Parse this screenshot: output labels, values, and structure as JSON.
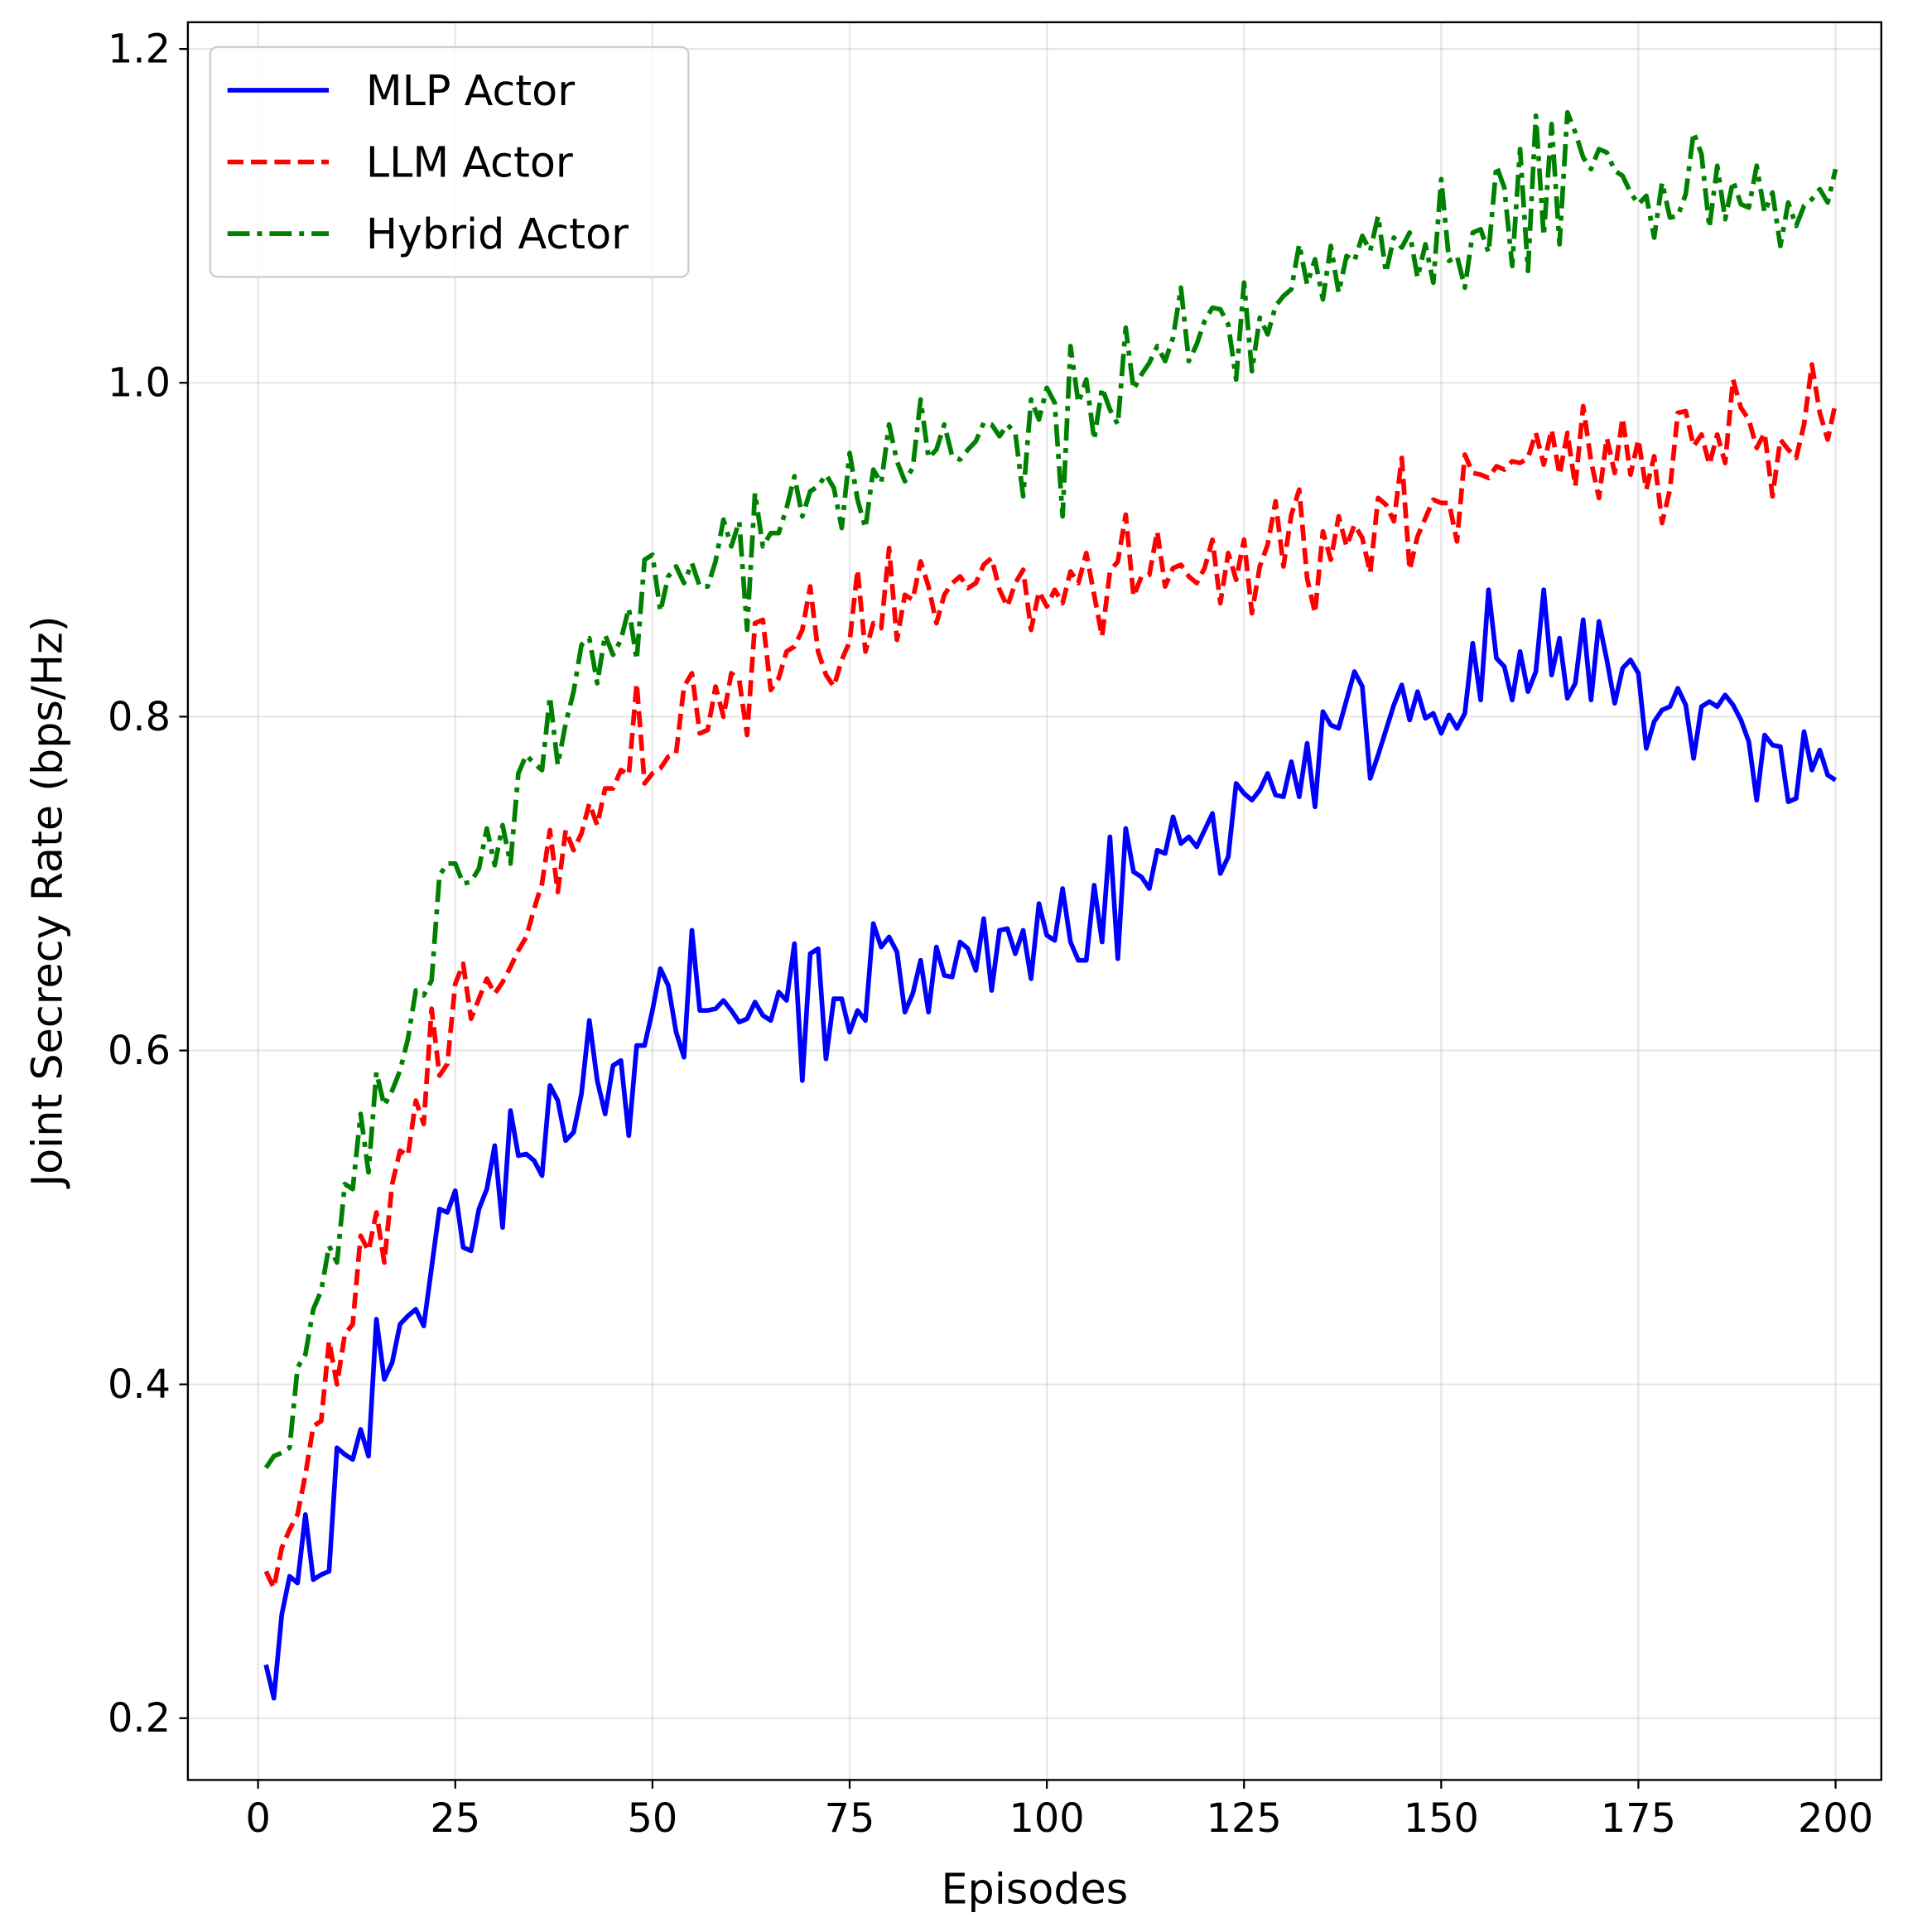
{
  "chart_data": {
    "type": "line",
    "xlabel": "Episodes",
    "ylabel": "Joint Secrecy Rate (bps/Hz)",
    "x": [
      1,
      2,
      3,
      4,
      5,
      6,
      7,
      8,
      9,
      10,
      11,
      12,
      13,
      14,
      15,
      16,
      17,
      18,
      19,
      20,
      21,
      22,
      23,
      24,
      25,
      26,
      27,
      28,
      29,
      30,
      31,
      32,
      33,
      34,
      35,
      36,
      37,
      38,
      39,
      40,
      41,
      42,
      43,
      44,
      45,
      46,
      47,
      48,
      49,
      50,
      51,
      52,
      53,
      54,
      55,
      56,
      57,
      58,
      59,
      60,
      61,
      62,
      63,
      64,
      65,
      66,
      67,
      68,
      69,
      70,
      71,
      72,
      73,
      74,
      75,
      76,
      77,
      78,
      79,
      80,
      81,
      82,
      83,
      84,
      85,
      86,
      87,
      88,
      89,
      90,
      91,
      92,
      93,
      94,
      95,
      96,
      97,
      98,
      99,
      100,
      101,
      102,
      103,
      104,
      105,
      106,
      107,
      108,
      109,
      110,
      111,
      112,
      113,
      114,
      115,
      116,
      117,
      118,
      119,
      120,
      121,
      122,
      123,
      124,
      125,
      126,
      127,
      128,
      129,
      130,
      131,
      132,
      133,
      134,
      135,
      136,
      137,
      138,
      139,
      140,
      141,
      142,
      143,
      144,
      145,
      146,
      147,
      148,
      149,
      150,
      151,
      152,
      153,
      154,
      155,
      156,
      157,
      158,
      159,
      160,
      161,
      162,
      163,
      164,
      165,
      166,
      167,
      168,
      169,
      170,
      171,
      172,
      173,
      174,
      175,
      176,
      177,
      178,
      179,
      180,
      181,
      182,
      183,
      184,
      185,
      186,
      187,
      188,
      189,
      190,
      191,
      192,
      193,
      194,
      195,
      196,
      197,
      198,
      199,
      200
    ],
    "series": [
      {
        "name": "MLP Actor",
        "color": "#0000ff",
        "dash": "solid",
        "values": [
          0.232,
          0.212,
          0.262,
          0.285,
          0.281,
          0.322,
          0.283,
          0.286,
          0.288,
          0.362,
          0.358,
          0.355,
          0.373,
          0.357,
          0.439,
          0.403,
          0.413,
          0.436,
          0.441,
          0.445,
          0.435,
          0.47,
          0.505,
          0.503,
          0.516,
          0.482,
          0.48,
          0.505,
          0.517,
          0.543,
          0.494,
          0.564,
          0.537,
          0.538,
          0.534,
          0.525,
          0.579,
          0.57,
          0.546,
          0.551,
          0.574,
          0.618,
          0.582,
          0.562,
          0.591,
          0.594,
          0.549,
          0.603,
          0.603,
          0.624,
          0.649,
          0.639,
          0.611,
          0.596,
          0.672,
          0.624,
          0.624,
          0.625,
          0.63,
          0.624,
          0.617,
          0.619,
          0.629,
          0.621,
          0.618,
          0.635,
          0.63,
          0.664,
          0.582,
          0.658,
          0.661,
          0.595,
          0.631,
          0.631,
          0.611,
          0.624,
          0.618,
          0.676,
          0.662,
          0.668,
          0.659,
          0.623,
          0.634,
          0.654,
          0.623,
          0.662,
          0.645,
          0.644,
          0.665,
          0.661,
          0.648,
          0.679,
          0.636,
          0.672,
          0.673,
          0.658,
          0.672,
          0.643,
          0.688,
          0.669,
          0.666,
          0.697,
          0.665,
          0.654,
          0.654,
          0.699,
          0.665,
          0.728,
          0.655,
          0.733,
          0.707,
          0.704,
          0.697,
          0.72,
          0.718,
          0.74,
          0.724,
          0.728,
          0.722,
          0.732,
          0.742,
          0.706,
          0.716,
          0.76,
          0.754,
          0.75,
          0.756,
          0.766,
          0.753,
          0.752,
          0.773,
          0.752,
          0.784,
          0.746,
          0.803,
          0.795,
          0.793,
          0.81,
          0.827,
          0.818,
          0.763,
          0.777,
          0.792,
          0.807,
          0.819,
          0.798,
          0.815,
          0.799,
          0.802,
          0.79,
          0.801,
          0.793,
          0.802,
          0.844,
          0.81,
          0.876,
          0.835,
          0.83,
          0.81,
          0.839,
          0.815,
          0.827,
          0.876,
          0.825,
          0.847,
          0.811,
          0.82,
          0.858,
          0.81,
          0.857,
          0.834,
          0.808,
          0.829,
          0.834,
          0.826,
          0.781,
          0.797,
          0.804,
          0.806,
          0.817,
          0.807,
          0.775,
          0.806,
          0.809,
          0.806,
          0.813,
          0.807,
          0.798,
          0.785,
          0.75,
          0.789,
          0.783,
          0.782,
          0.749,
          0.751,
          0.791,
          0.768,
          0.78,
          0.765,
          0.762
        ]
      },
      {
        "name": "LLM Actor",
        "color": "#ff0000",
        "dash": "dashed",
        "values": [
          0.288,
          0.278,
          0.302,
          0.313,
          0.322,
          0.346,
          0.375,
          0.378,
          0.426,
          0.4,
          0.43,
          0.436,
          0.489,
          0.48,
          0.503,
          0.473,
          0.52,
          0.54,
          0.537,
          0.57,
          0.556,
          0.625,
          0.585,
          0.592,
          0.64,
          0.652,
          0.619,
          0.631,
          0.643,
          0.634,
          0.641,
          0.65,
          0.66,
          0.668,
          0.685,
          0.7,
          0.732,
          0.695,
          0.732,
          0.72,
          0.73,
          0.748,
          0.735,
          0.757,
          0.757,
          0.768,
          0.765,
          0.82,
          0.76,
          0.766,
          0.769,
          0.776,
          0.778,
          0.818,
          0.826,
          0.79,
          0.792,
          0.818,
          0.8,
          0.826,
          0.822,
          0.789,
          0.856,
          0.858,
          0.816,
          0.823,
          0.839,
          0.842,
          0.852,
          0.878,
          0.839,
          0.825,
          0.818,
          0.834,
          0.845,
          0.888,
          0.839,
          0.856,
          0.853,
          0.901,
          0.846,
          0.873,
          0.87,
          0.893,
          0.878,
          0.856,
          0.873,
          0.88,
          0.884,
          0.877,
          0.88,
          0.891,
          0.895,
          0.876,
          0.866,
          0.88,
          0.888,
          0.852,
          0.875,
          0.866,
          0.876,
          0.868,
          0.887,
          0.88,
          0.898,
          0.873,
          0.848,
          0.887,
          0.893,
          0.921,
          0.872,
          0.884,
          0.885,
          0.911,
          0.878,
          0.889,
          0.891,
          0.884,
          0.88,
          0.889,
          0.906,
          0.868,
          0.898,
          0.882,
          0.906,
          0.862,
          0.89,
          0.903,
          0.929,
          0.89,
          0.921,
          0.936,
          0.883,
          0.862,
          0.911,
          0.894,
          0.92,
          0.902,
          0.915,
          0.907,
          0.886,
          0.931,
          0.927,
          0.917,
          0.955,
          0.888,
          0.908,
          0.919,
          0.93,
          0.928,
          0.928,
          0.905,
          0.957,
          0.946,
          0.945,
          0.943,
          0.95,
          0.948,
          0.953,
          0.952,
          0.955,
          0.97,
          0.951,
          0.972,
          0.945,
          0.97,
          0.938,
          0.986,
          0.953,
          0.931,
          0.967,
          0.946,
          0.979,
          0.945,
          0.966,
          0.936,
          0.956,
          0.916,
          0.936,
          0.982,
          0.983,
          0.962,
          0.969,
          0.951,
          0.969,
          0.952,
          1.002,
          0.985,
          0.978,
          0.961,
          0.97,
          0.932,
          0.966,
          0.96,
          0.955,
          0.975,
          1.011,
          0.982,
          0.966,
          0.988
        ]
      },
      {
        "name": "Hybrid Actor",
        "color": "#008000",
        "dash": "dashdot",
        "values": [
          0.35,
          0.357,
          0.359,
          0.362,
          0.41,
          0.418,
          0.445,
          0.456,
          0.483,
          0.473,
          0.52,
          0.517,
          0.562,
          0.527,
          0.587,
          0.567,
          0.576,
          0.588,
          0.607,
          0.636,
          0.633,
          0.642,
          0.705,
          0.712,
          0.712,
          0.7,
          0.701,
          0.709,
          0.733,
          0.711,
          0.735,
          0.712,
          0.766,
          0.777,
          0.772,
          0.768,
          0.812,
          0.771,
          0.796,
          0.815,
          0.843,
          0.847,
          0.82,
          0.849,
          0.837,
          0.846,
          0.865,
          0.834,
          0.894,
          0.897,
          0.863,
          0.884,
          0.89,
          0.88,
          0.892,
          0.878,
          0.878,
          0.893,
          0.918,
          0.902,
          0.917,
          0.852,
          0.934,
          0.902,
          0.91,
          0.91,
          0.925,
          0.944,
          0.92,
          0.935,
          0.938,
          0.945,
          0.937,
          0.913,
          0.958,
          0.93,
          0.913,
          0.948,
          0.94,
          0.975,
          0.953,
          0.941,
          0.949,
          0.99,
          0.955,
          0.96,
          0.975,
          0.956,
          0.954,
          0.96,
          0.965,
          0.976,
          0.975,
          0.968,
          0.975,
          0.97,
          0.932,
          0.99,
          0.978,
          0.997,
          0.988,
          0.92,
          1.022,
          0.988,
          1.002,
          0.966,
          0.997,
          0.984,
          0.975,
          1.033,
          0.996,
          1.005,
          1.012,
          1.022,
          1.013,
          1.027,
          1.057,
          1.013,
          1.023,
          1.037,
          1.045,
          1.044,
          1.035,
          1.002,
          1.06,
          1.007,
          1.039,
          1.029,
          1.046,
          1.052,
          1.056,
          1.083,
          1.059,
          1.074,
          1.05,
          1.082,
          1.054,
          1.076,
          1.073,
          1.088,
          1.079,
          1.1,
          1.066,
          1.087,
          1.081,
          1.09,
          1.063,
          1.083,
          1.06,
          1.122,
          1.073,
          1.076,
          1.057,
          1.09,
          1.092,
          1.078,
          1.13,
          1.117,
          1.07,
          1.14,
          1.067,
          1.16,
          1.088,
          1.155,
          1.083,
          1.162,
          1.15,
          1.135,
          1.128,
          1.14,
          1.138,
          1.127,
          1.124,
          1.114,
          1.107,
          1.112,
          1.087,
          1.12,
          1.099,
          1.1,
          1.113,
          1.15,
          1.137,
          1.093,
          1.13,
          1.098,
          1.121,
          1.107,
          1.105,
          1.13,
          1.102,
          1.114,
          1.082,
          1.108,
          1.094,
          1.106,
          1.11,
          1.116,
          1.108,
          1.128
        ]
      }
    ],
    "xlim": [
      -8.9,
      205.8
    ],
    "ylim": [
      0.163,
      1.216
    ],
    "xticks": [
      0,
      25,
      50,
      75,
      100,
      125,
      150,
      175,
      200
    ],
    "yticks": [
      0.2,
      0.4,
      0.6,
      0.8,
      {
        "value": 1,
        "label": "1.0"
      },
      1.2
    ],
    "grid": true,
    "legend": "upper-left"
  }
}
